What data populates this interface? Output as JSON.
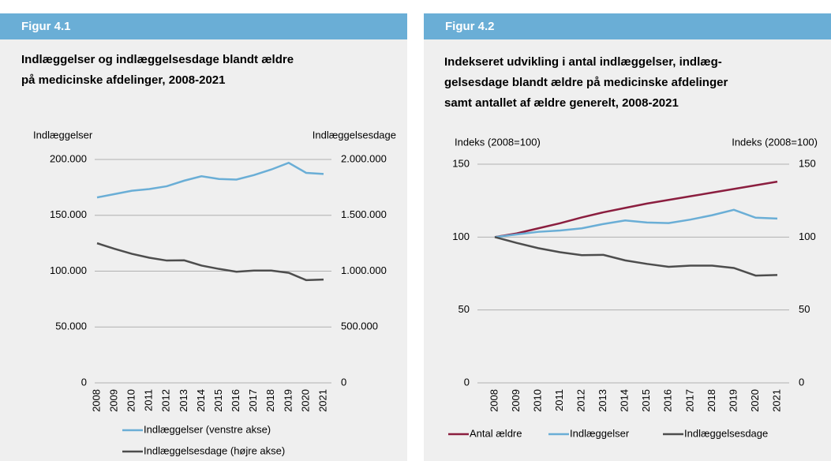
{
  "chart_data": [
    {
      "type": "line",
      "label": "Figur 4.1",
      "title": [
        "Indlæggelser og indlæggelsesdage blandt ældre",
        "på medicinske afdelinger, 2008-2021"
      ],
      "y_label": "Indlæggelser",
      "y2_label": "Indlæggelsesdage",
      "categories": [
        "2008",
        "2009",
        "2010",
        "2011",
        "2012",
        "2013",
        "2014",
        "2015",
        "2016",
        "2017",
        "2018",
        "2019",
        "2020",
        "2021"
      ],
      "ylim": [
        0,
        200000
      ],
      "yticks": [
        {
          "value": 0,
          "label": "0"
        },
        {
          "value": 50000,
          "label": "50.000"
        },
        {
          "value": 100000,
          "label": "100.000"
        },
        {
          "value": 150000,
          "label": "150.000"
        },
        {
          "value": 200000,
          "label": "200.000"
        }
      ],
      "y2lim": [
        0,
        2000000
      ],
      "y2ticks": [
        {
          "value": 0,
          "label": "0"
        },
        {
          "value": 500000,
          "label": "500.000"
        },
        {
          "value": 1000000,
          "label": "1.000.000"
        },
        {
          "value": 1500000,
          "label": "1.500.000"
        },
        {
          "value": 2000000,
          "label": "2.000.000"
        }
      ],
      "grid": true,
      "series": [
        {
          "name": "Indlæggelser (venstre akse)",
          "color": "#6aaed6",
          "values": [
            166000,
            169000,
            172000,
            173500,
            176000,
            181000,
            185000,
            182500,
            182000,
            186000,
            191000,
            197000,
            188000,
            187000
          ]
        },
        {
          "name": "Indlæggelsesdage (højre akse)",
          "color": "#4d4d4d",
          "axis": "y2",
          "values": [
            1250000,
            1200000,
            1155000,
            1120000,
            1095000,
            1097000,
            1050000,
            1020000,
            995000,
            1005000,
            1005000,
            985000,
            920000,
            925000
          ]
        }
      ]
    },
    {
      "type": "line",
      "label": "Figur 4.2",
      "title": [
        "Indekseret udvikling i antal indlæggelser, indlæg-",
        "gelsesdage blandt ældre på medicinske afdelinger",
        "samt antallet af ældre generelt, 2008-2021"
      ],
      "y_label": "Indeks (2008=100)",
      "y2_label": "Indeks (2008=100)",
      "categories": [
        "2008",
        "2009",
        "2010",
        "2011",
        "2012",
        "2013",
        "2014",
        "2015",
        "2016",
        "2017",
        "2018",
        "2019",
        "2020",
        "2021"
      ],
      "ylim": [
        0,
        150
      ],
      "yticks": [
        0,
        50,
        100,
        150
      ],
      "y2lim": [
        0,
        150
      ],
      "y2ticks": [
        0,
        50,
        100,
        150
      ],
      "grid": true,
      "series": [
        {
          "name": "Antal ældre",
          "color": "#8b1e3f",
          "values": [
            100,
            102.5,
            106,
            109.5,
            113.5,
            117,
            120,
            123,
            125.5,
            128,
            130.5,
            133,
            135.5,
            138
          ]
        },
        {
          "name": "Indlæggelser",
          "color": "#6aaed6",
          "values": [
            100,
            101.8,
            103.6,
            104.5,
            106,
            109,
            111.4,
            110,
            109.6,
            112,
            115,
            118.7,
            113.3,
            112.7
          ]
        },
        {
          "name": "Indlæggelsesdage",
          "color": "#4d4d4d",
          "values": [
            100,
            96,
            92.4,
            89.6,
            87.6,
            87.8,
            84,
            81.6,
            79.6,
            80.4,
            80.4,
            78.8,
            73.6,
            74
          ]
        }
      ]
    }
  ]
}
